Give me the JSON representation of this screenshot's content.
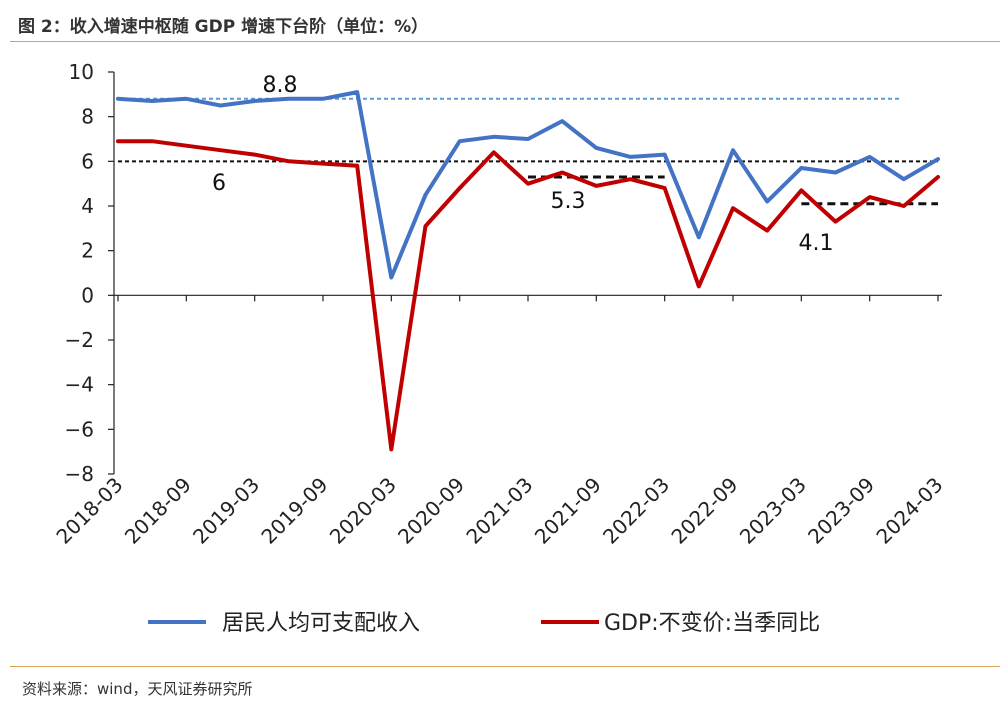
{
  "header": {
    "title": "图 2：收入增速中枢随 GDP 增速下台阶（单位：%）"
  },
  "footer": {
    "source": "资料来源：wind，天风证券研究所"
  },
  "chart_data": {
    "type": "line",
    "ylim": [
      -8,
      10
    ],
    "yticks": [
      "10",
      "8",
      "6",
      "4",
      "2",
      "0",
      "−2",
      "−4",
      "−6",
      "−8"
    ],
    "ytick_values": [
      10,
      8,
      6,
      4,
      2,
      0,
      -2,
      -4,
      -6,
      -8
    ],
    "x": [
      "2018-03",
      "2018-06",
      "2018-09",
      "2018-12",
      "2019-03",
      "2019-06",
      "2019-09",
      "2019-12",
      "2020-03",
      "2020-06",
      "2020-09",
      "2020-12",
      "2021-03",
      "2021-06",
      "2021-09",
      "2021-12",
      "2022-03",
      "2022-06",
      "2022-09",
      "2022-12",
      "2023-03",
      "2023-06",
      "2023-09",
      "2023-12",
      "2024-03"
    ],
    "xtick_labels": [
      "2018-03",
      "2018-09",
      "2019-03",
      "2019-09",
      "2020-03",
      "2020-09",
      "2021-03",
      "2021-09",
      "2022-03",
      "2022-09",
      "2023-03",
      "2023-09",
      "2024-03"
    ],
    "series": [
      {
        "name": "居民人均可支配收入",
        "color": "#4472c4",
        "values": [
          8.8,
          8.7,
          8.8,
          8.5,
          8.7,
          8.8,
          8.8,
          9.1,
          0.8,
          4.5,
          6.9,
          7.1,
          7.0,
          7.8,
          6.6,
          6.2,
          6.3,
          2.6,
          6.5,
          4.2,
          5.7,
          5.5,
          6.2,
          5.2,
          6.1
        ]
      },
      {
        "name": "GDP:不变价:当季同比",
        "color": "#c00000",
        "values": [
          6.9,
          6.9,
          6.7,
          6.5,
          6.3,
          6.0,
          5.9,
          5.8,
          -6.9,
          3.1,
          4.8,
          6.4,
          5.0,
          5.5,
          4.9,
          5.2,
          4.8,
          0.4,
          3.9,
          2.9,
          4.7,
          3.3,
          4.4,
          4.0,
          5.3
        ]
      }
    ],
    "reference_lines": [
      {
        "value": 8.8,
        "color": "#5b9bd5",
        "from": "2018-03",
        "to": "2024-03",
        "label": "8.8"
      },
      {
        "value": 6,
        "color": "#111111",
        "from": "2018-03",
        "to": "2024-03",
        "label": "6"
      },
      {
        "value": 5.3,
        "color": "#111111",
        "from": "2021-03",
        "to": "2022-03",
        "label": "5.3"
      },
      {
        "value": 4.1,
        "color": "#111111",
        "from": "2023-03",
        "to": "2024-03",
        "label": "4.1"
      }
    ],
    "legend_placement": "bottom",
    "grid": false
  }
}
